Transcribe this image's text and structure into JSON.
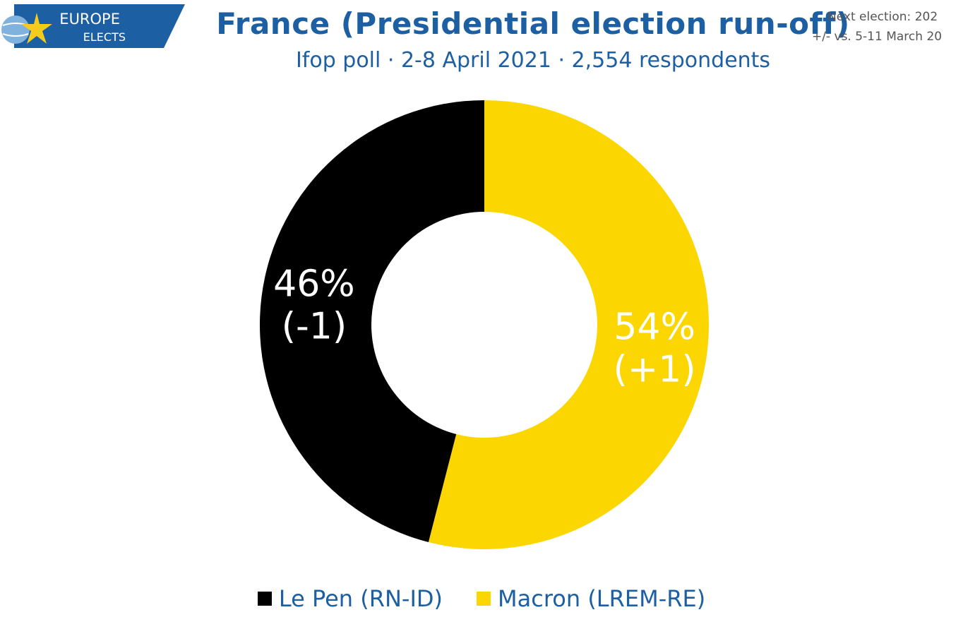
{
  "header": {
    "title": "France (Presidential election run-off)",
    "subtitle": "Ifop poll · 2-8 April 2021 · 2,554 respondents",
    "next_election": "Next election: 202",
    "comparison": "+/- vs. 5-11 March 20"
  },
  "logo": {
    "line1": "EUROPE",
    "line2": "ELECTS",
    "colors": {
      "banner": "#1d5fa3",
      "star": "#f6cc1c",
      "globe": "#7fb2dd"
    }
  },
  "chart_data": {
    "type": "pie",
    "donut": true,
    "title": "France (Presidential election run-off)",
    "series": [
      {
        "name": "Le Pen (RN-ID)",
        "value": 46,
        "change": "(-1)",
        "label": "46%",
        "color": "#000000"
      },
      {
        "name": "Macron (LREM-RE)",
        "value": 54,
        "change": "(+1)",
        "label": "54%",
        "color": "#fbd600"
      }
    ],
    "legend_position": "bottom"
  }
}
